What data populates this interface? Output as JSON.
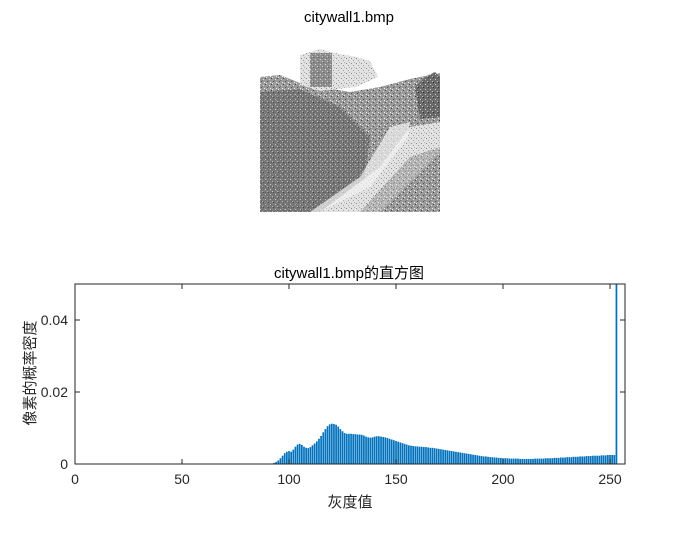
{
  "figure": {
    "image_title": "citywall1.bmp",
    "hist_title": "citywall1.bmp的直方图",
    "image_subject": "grayscale photo of the Great Wall (city wall with watchtower on hillside)"
  },
  "chart_data": {
    "type": "bar",
    "title": "citywall1.bmp的直方图",
    "xlabel": "灰度值",
    "ylabel": "像素的概率密度",
    "xlim": [
      0,
      257
    ],
    "ylim": [
      0,
      0.05
    ],
    "x_ticks": [
      "0",
      "50",
      "100",
      "150",
      "200",
      "250"
    ],
    "y_ticks": [
      "0",
      "0.02",
      "0.04"
    ],
    "bar_color": "#0072BD",
    "bins_start": 1,
    "values": [
      0,
      0,
      0,
      0,
      0,
      0,
      0,
      0,
      0,
      0,
      0,
      0,
      0,
      0,
      0,
      0,
      0,
      0,
      0,
      0,
      0,
      0,
      0,
      0,
      0,
      0,
      0,
      0,
      0,
      0,
      0,
      0,
      0,
      0,
      0,
      0,
      0,
      0,
      0,
      0,
      0,
      0,
      0,
      0,
      0,
      0,
      0,
      0,
      0,
      0,
      0,
      0,
      0,
      0,
      0,
      0,
      0,
      0,
      0,
      0,
      0,
      0,
      0,
      0,
      0,
      0,
      0,
      0,
      0,
      0,
      0,
      0,
      0,
      0,
      0,
      0,
      0,
      0,
      0,
      0,
      0,
      0,
      0,
      0,
      0,
      0,
      0,
      0,
      0,
      0,
      0,
      0,
      0.0003,
      0.0006,
      0.001,
      0.0016,
      0.0023,
      0.003,
      0.0034,
      0.0036,
      0.0034,
      0.004,
      0.0048,
      0.0054,
      0.0056,
      0.0053,
      0.0048,
      0.0045,
      0.0044,
      0.0047,
      0.0052,
      0.0057,
      0.0063,
      0.007,
      0.0078,
      0.0088,
      0.0097,
      0.0105,
      0.011,
      0.0112,
      0.0111,
      0.0109,
      0.0104,
      0.0097,
      0.0091,
      0.0086,
      0.0084,
      0.0084,
      0.0084,
      0.0083,
      0.0083,
      0.0082,
      0.0082,
      0.0081,
      0.0079,
      0.0076,
      0.0074,
      0.0073,
      0.0074,
      0.0076,
      0.0077,
      0.0077,
      0.0076,
      0.0075,
      0.0074,
      0.0072,
      0.007,
      0.0068,
      0.0066,
      0.0064,
      0.0062,
      0.006,
      0.0058,
      0.0056,
      0.0054,
      0.0052,
      0.0051,
      0.005,
      0.0049,
      0.0049,
      0.0048,
      0.0048,
      0.0047,
      0.0047,
      0.0046,
      0.0045,
      0.0045,
      0.0044,
      0.0043,
      0.0042,
      0.0041,
      0.004,
      0.0039,
      0.0038,
      0.0037,
      0.0036,
      0.0035,
      0.0034,
      0.0033,
      0.0032,
      0.0031,
      0.003,
      0.0029,
      0.0028,
      0.0027,
      0.0026,
      0.0025,
      0.0024,
      0.0023,
      0.0022,
      0.0021,
      0.0021,
      0.002,
      0.0019,
      0.0019,
      0.0018,
      0.0018,
      0.0017,
      0.0017,
      0.0016,
      0.0016,
      0.0016,
      0.0015,
      0.0015,
      0.0015,
      0.0015,
      0.0015,
      0.0014,
      0.0014,
      0.0014,
      0.0014,
      0.0014,
      0.0014,
      0.0014,
      0.0015,
      0.0015,
      0.0015,
      0.0015,
      0.0015,
      0.0016,
      0.0016,
      0.0016,
      0.0016,
      0.0017,
      0.0017,
      0.0017,
      0.0018,
      0.0018,
      0.0018,
      0.0019,
      0.0019,
      0.0019,
      0.002,
      0.002,
      0.002,
      0.0021,
      0.0021,
      0.0021,
      0.0022,
      0.0022,
      0.0022,
      0.0023,
      0.0023,
      0.0023,
      0.0023,
      0.0024,
      0.0024,
      0.0024,
      0.0025,
      0.0025,
      0.0025,
      0.0025,
      0.05
    ]
  }
}
